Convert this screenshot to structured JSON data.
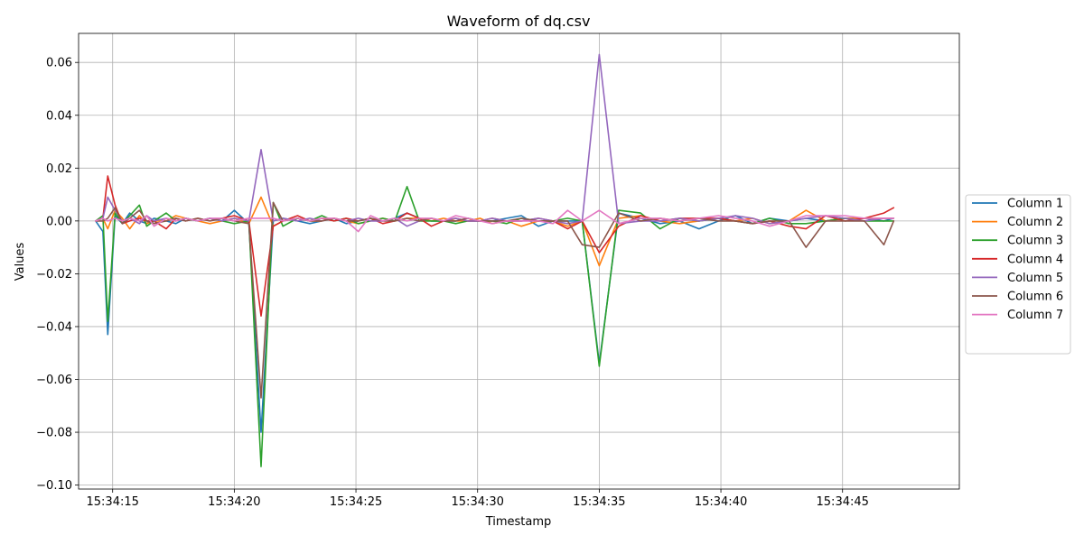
{
  "chart_data": {
    "type": "line",
    "title": "Waveform of dq.csv",
    "xlabel": "Timestamp",
    "ylabel": "Values",
    "x_ticks": [
      "15:34:15",
      "15:34:20",
      "15:34:25",
      "15:34:30",
      "15:34:35",
      "15:34:40",
      "15:34:45"
    ],
    "y_ticks": [
      "−0.10",
      "−0.08",
      "−0.06",
      "−0.04",
      "−0.02",
      "0.00",
      "0.02",
      "0.04",
      "0.06"
    ],
    "xlim": [
      13.6,
      49.8
    ],
    "ylim": [
      -0.1015,
      0.071
    ],
    "x_unit_note": "seconds after 15:34:00",
    "grid": true,
    "legend_position": "right",
    "x": [
      14.3,
      14.6,
      14.8,
      15.1,
      15.4,
      15.7,
      16.1,
      16.4,
      16.7,
      17.2,
      17.6,
      18.0,
      18.5,
      19.0,
      19.5,
      20.0,
      20.6,
      21.1,
      21.6,
      22.0,
      22.6,
      23.1,
      23.6,
      24.1,
      24.6,
      25.1,
      25.6,
      26.1,
      26.6,
      27.1,
      27.6,
      28.1,
      28.6,
      29.1,
      29.6,
      30.1,
      30.6,
      31.2,
      31.8,
      32.5,
      33.1,
      33.7,
      34.3,
      35.0,
      35.8,
      36.7,
      37.5,
      38.3,
      39.1,
      39.9,
      40.6,
      41.3,
      42.0,
      42.8,
      43.5,
      44.3,
      45.1,
      45.9,
      46.7,
      47.1
    ],
    "series": [
      {
        "name": "Column 1",
        "color": "#1f77b4",
        "values": [
          0.0,
          -0.004,
          -0.043,
          0.002,
          -0.001,
          0.003,
          0.0,
          -0.001,
          0.001,
          0.0,
          -0.001,
          0.001,
          0.0,
          0.001,
          0.0,
          0.004,
          -0.001,
          -0.08,
          0.0,
          0.001,
          0.0,
          -0.001,
          0.0,
          0.001,
          -0.001,
          0.0,
          0.001,
          0.0,
          0.001,
          0.003,
          0.001,
          0.0,
          0.0,
          0.0,
          0.001,
          0.0,
          0.0,
          0.001,
          0.002,
          -0.002,
          0.0,
          0.0,
          0.0,
          -0.054,
          0.003,
          0.001,
          -0.001,
          0.0,
          -0.003,
          0.0,
          0.002,
          -0.001,
          0.001,
          0.0,
          0.001,
          0.0,
          0.001,
          0.001,
          0.0,
          0.001
        ]
      },
      {
        "name": "Column 2",
        "color": "#ff7f0e",
        "values": [
          0.0,
          0.001,
          -0.003,
          0.004,
          0.001,
          -0.003,
          0.002,
          -0.001,
          0.0,
          0.0,
          0.002,
          0.001,
          0.0,
          -0.001,
          0.0,
          0.001,
          -0.001,
          0.009,
          -0.002,
          0.0,
          0.001,
          0.0,
          0.0,
          0.001,
          0.0,
          -0.001,
          0.0,
          0.001,
          0.0,
          0.001,
          0.001,
          0.0,
          0.001,
          0.0,
          0.0,
          0.001,
          -0.001,
          0.0,
          -0.002,
          0.0,
          0.0,
          -0.002,
          0.0,
          -0.017,
          0.001,
          0.002,
          0.0,
          -0.001,
          0.0,
          0.001,
          0.0,
          0.001,
          -0.001,
          0.0,
          0.004,
          0.0,
          0.001,
          0.001,
          0.001,
          0.001
        ]
      },
      {
        "name": "Column 3",
        "color": "#2ca02c",
        "values": [
          0.0,
          0.002,
          -0.038,
          0.003,
          -0.001,
          0.002,
          0.006,
          -0.002,
          0.0,
          0.003,
          0.0,
          0.001,
          0.0,
          0.001,
          0.0,
          -0.001,
          0.0,
          -0.093,
          0.007,
          -0.002,
          0.001,
          0.0,
          0.002,
          0.0,
          0.001,
          -0.001,
          0.0,
          0.001,
          0.0,
          0.013,
          0.0,
          0.0,
          0.0,
          -0.001,
          0.0,
          0.0,
          0.0,
          -0.001,
          0.001,
          0.0,
          0.0,
          0.001,
          0.0,
          -0.055,
          0.004,
          0.003,
          -0.003,
          0.001,
          0.0,
          0.001,
          0.0,
          -0.001,
          0.001,
          -0.001,
          -0.001,
          0.0,
          0.001,
          0.0,
          0.0,
          0.0
        ]
      },
      {
        "name": "Column 4",
        "color": "#d62728",
        "values": [
          0.0,
          0.001,
          0.017,
          0.006,
          -0.001,
          0.0,
          0.001,
          0.0,
          0.0,
          -0.003,
          0.001,
          0.0,
          0.001,
          0.0,
          0.001,
          0.002,
          0.0,
          -0.036,
          -0.002,
          0.0,
          0.002,
          0.0,
          0.001,
          0.0,
          0.001,
          0.0,
          0.001,
          -0.001,
          0.0,
          0.003,
          0.001,
          -0.002,
          0.0,
          0.001,
          0.0,
          0.0,
          0.001,
          0.0,
          0.0,
          0.001,
          0.0,
          -0.003,
          0.0,
          -0.012,
          -0.002,
          0.002,
          0.0,
          0.001,
          0.001,
          0.001,
          0.0,
          -0.001,
          0.0,
          -0.002,
          -0.003,
          0.002,
          0.0,
          0.001,
          0.003,
          0.005
        ]
      },
      {
        "name": "Column 5",
        "color": "#9467bd",
        "values": [
          0.0,
          0.001,
          0.009,
          0.004,
          0.0,
          0.001,
          -0.001,
          0.002,
          0.0,
          0.001,
          0.0,
          0.001,
          0.0,
          0.001,
          0.0,
          0.001,
          0.0,
          0.027,
          0.0,
          0.001,
          0.0,
          0.001,
          0.0,
          0.001,
          0.0,
          0.001,
          0.0,
          0.0,
          0.001,
          -0.002,
          0.0,
          0.001,
          0.0,
          0.001,
          0.0,
          0.0,
          0.001,
          0.0,
          0.0,
          0.001,
          0.0,
          -0.001,
          0.0,
          0.063,
          -0.001,
          0.0,
          0.0,
          0.001,
          0.0,
          0.001,
          0.002,
          0.001,
          -0.001,
          0.0,
          0.001,
          0.002,
          0.001,
          0.0,
          0.001,
          0.001
        ]
      },
      {
        "name": "Column 6",
        "color": "#8c564b",
        "values": [
          0.0,
          0.0,
          0.001,
          0.005,
          -0.001,
          0.001,
          0.004,
          0.0,
          -0.001,
          0.0,
          0.001,
          0.0,
          0.001,
          0.0,
          0.001,
          0.0,
          -0.001,
          -0.067,
          0.007,
          0.0,
          0.001,
          0.0,
          0.0,
          0.001,
          0.0,
          0.0,
          0.001,
          0.0,
          0.0,
          0.001,
          0.0,
          0.001,
          0.0,
          0.0,
          0.001,
          0.0,
          0.0,
          0.0,
          0.001,
          0.0,
          0.0,
          0.0,
          -0.009,
          -0.01,
          0.003,
          0.0,
          0.001,
          0.0,
          0.001,
          0.0,
          0.0,
          -0.001,
          0.0,
          0.0,
          -0.01,
          0.0,
          0.0,
          0.0,
          -0.009,
          0.0
        ]
      },
      {
        "name": "Column 7",
        "color": "#e377c2",
        "values": [
          0.0,
          0.001,
          0.0,
          0.001,
          0.0,
          0.001,
          0.0,
          0.002,
          -0.002,
          0.001,
          0.0,
          0.001,
          0.0,
          0.001,
          0.001,
          0.0,
          0.001,
          0.001,
          0.001,
          0.0,
          0.001,
          0.0,
          0.001,
          0.001,
          0.0,
          -0.004,
          0.002,
          0.0,
          0.001,
          0.0,
          0.001,
          0.001,
          0.0,
          0.002,
          0.001,
          0.0,
          -0.001,
          0.0,
          0.0,
          0.0,
          -0.001,
          0.004,
          0.0,
          0.004,
          -0.001,
          0.001,
          0.001,
          0.0,
          0.001,
          0.002,
          0.001,
          0.0,
          -0.002,
          0.0,
          0.002,
          0.002,
          0.002,
          0.001,
          0.001,
          0.001
        ]
      }
    ]
  }
}
